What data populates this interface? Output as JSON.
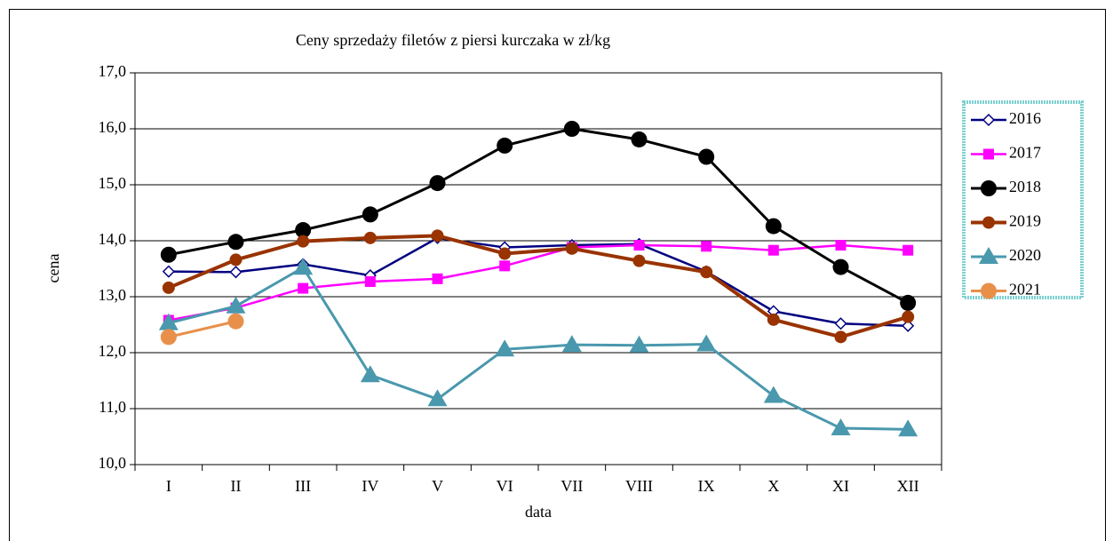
{
  "chart_data": {
    "type": "line",
    "title": "Ceny sprzedaży filetów z piersi kurczaka w zł/kg",
    "x_label": "data",
    "y_label": "cena",
    "categories": [
      "I",
      "II",
      "III",
      "IV",
      "V",
      "VI",
      "VII",
      "VIII",
      "IX",
      "X",
      "XI",
      "XII"
    ],
    "ylim": [
      10,
      17
    ],
    "yticks": [
      {
        "value": 10,
        "label": "10,0"
      },
      {
        "value": 11,
        "label": "11,0"
      },
      {
        "value": 12,
        "label": "12,0"
      },
      {
        "value": 13,
        "label": "13,0"
      },
      {
        "value": 14,
        "label": "14,0"
      },
      {
        "value": 15,
        "label": "15,0"
      },
      {
        "value": 16,
        "label": "16,0"
      },
      {
        "value": 17,
        "label": "17,0"
      }
    ],
    "grid": true,
    "legend": "right",
    "series": [
      {
        "name": "2016",
        "color": "#000080",
        "marker": "diamond",
        "values": [
          13.45,
          13.44,
          13.58,
          13.38,
          14.05,
          13.88,
          13.92,
          13.94,
          13.45,
          12.74,
          12.52,
          12.48
        ]
      },
      {
        "name": "2017",
        "color": "#ff00ff",
        "marker": "square",
        "values": [
          12.58,
          12.8,
          13.15,
          13.27,
          13.32,
          13.55,
          13.88,
          13.92,
          13.9,
          13.83,
          13.92,
          13.83
        ]
      },
      {
        "name": "2018",
        "color": "#000000",
        "marker": "circle",
        "values": [
          13.75,
          13.98,
          14.19,
          14.47,
          15.03,
          15.7,
          16.0,
          15.81,
          15.5,
          14.26,
          13.53,
          12.89
        ]
      },
      {
        "name": "2019",
        "color": "#993300",
        "marker": "circle",
        "values": [
          13.16,
          13.66,
          13.99,
          14.05,
          14.09,
          13.77,
          13.86,
          13.64,
          13.44,
          12.59,
          12.28,
          12.64
        ]
      },
      {
        "name": "2020",
        "color": "#4a98ad",
        "marker": "triangle",
        "values": [
          12.53,
          12.83,
          13.52,
          11.6,
          11.17,
          12.06,
          12.14,
          12.13,
          12.15,
          11.23,
          10.65,
          10.63
        ]
      },
      {
        "name": "2021",
        "color": "#e8904a",
        "marker": "circle",
        "values": [
          12.28,
          12.56,
          null,
          null,
          null,
          null,
          null,
          null,
          null,
          null,
          null,
          null
        ]
      }
    ]
  }
}
